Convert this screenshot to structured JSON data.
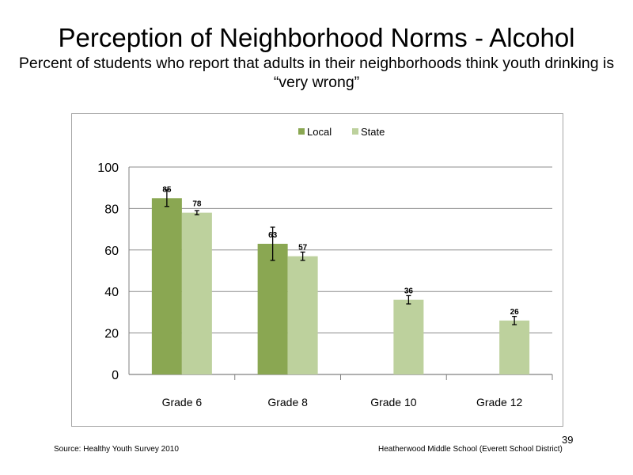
{
  "slide": {
    "title": "Perception  of Neighborhood  Norms - Alcohol",
    "subtitle": "Percent of students  who report that adults  in their neighborhoods  think  youth drinking  is “very wrong”",
    "source": "Source: Healthy  Youth Survey 2010",
    "school": "Heatherwood Middle  School  (Everett School District)",
    "page_number": "39"
  },
  "chart_data": {
    "type": "bar",
    "categories": [
      "Grade 6",
      "Grade 8",
      "Grade 10",
      "Grade 12"
    ],
    "series": [
      {
        "name": "Local",
        "color": "#8aa752",
        "values": [
          85,
          63,
          null,
          null
        ],
        "labels": [
          "85",
          "63",
          "",
          ""
        ],
        "error_low": [
          81,
          55,
          null,
          null
        ],
        "error_high": [
          89,
          71,
          null,
          null
        ]
      },
      {
        "name": "State",
        "color": "#bdd19d",
        "values": [
          78,
          57,
          36,
          26
        ],
        "labels": [
          "78",
          "57",
          "36",
          "26"
        ],
        "error_low": [
          77,
          55,
          34,
          24
        ],
        "error_high": [
          79,
          59,
          38,
          28
        ]
      }
    ],
    "ylim": [
      0,
      100
    ],
    "yticks": [
      0,
      20,
      40,
      60,
      80,
      100
    ],
    "grid": true,
    "legend": "top-center"
  }
}
